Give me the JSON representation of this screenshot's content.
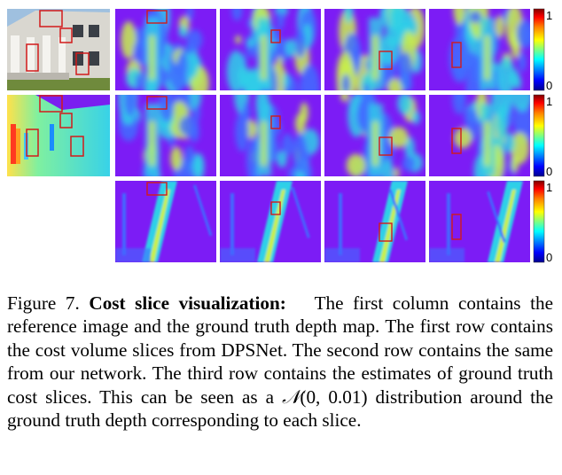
{
  "colorbar": {
    "max_label": "1",
    "min_label": "0",
    "gradient": [
      "#00008f",
      "#0000ff",
      "#00ffff",
      "#ffff00",
      "#ff7f00",
      "#ff0000",
      "#800000"
    ]
  },
  "grid": {
    "rows": [
      {
        "has_reference": true,
        "row_kind": "dpsnet"
      },
      {
        "has_reference": true,
        "row_kind": "ours"
      },
      {
        "has_reference": false,
        "row_kind": "ground-truth"
      }
    ],
    "slice_columns": 4
  },
  "colors": {
    "cost_background": "#7c1cf5",
    "cost_low": "#3f6cff",
    "cost_mid": "#2fd0e8",
    "cost_high": "#c9f04a",
    "box_red": "#d21a1a",
    "sky": "#9fc0df",
    "facade": "#e9e7e2",
    "grass": "#6f8a3c"
  },
  "caption": {
    "figure_label": "Figure 7.",
    "title": "Cost slice visualization:",
    "body_pre": "The first column contains the reference image and the ground truth depth map. The first row contains the cost volume slices from DPSNet. The second row contains the same from our network. The third row contains the estimates of ground truth cost slices. This can be seen as a ",
    "math_symbol": "𝒩",
    "math_args": "(0, 0.01)",
    "body_post": " distribution around the ground truth depth corresponding to each slice."
  }
}
